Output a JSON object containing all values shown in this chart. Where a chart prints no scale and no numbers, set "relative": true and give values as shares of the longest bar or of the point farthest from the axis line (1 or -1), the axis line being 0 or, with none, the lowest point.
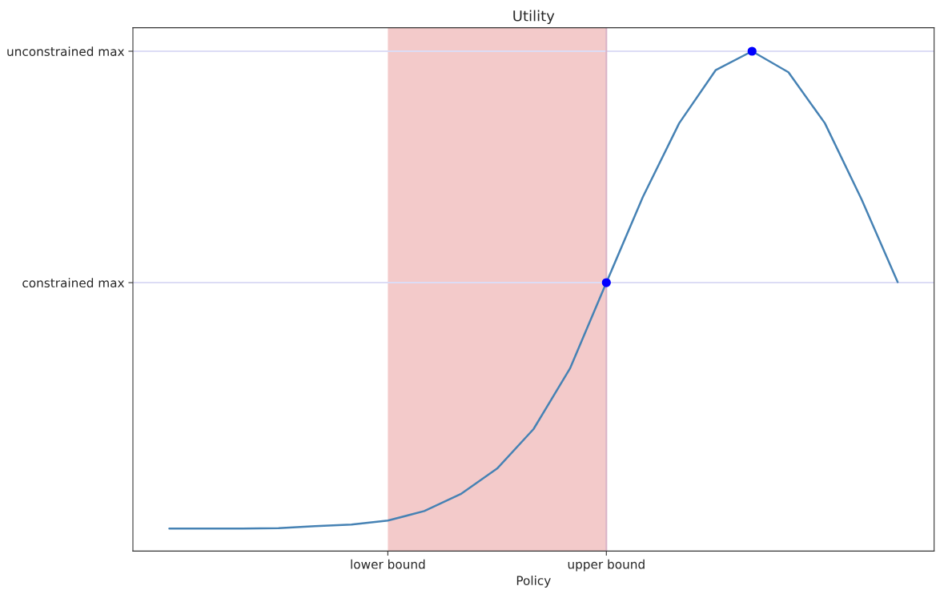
{
  "chart_data": {
    "type": "line",
    "title": "Utility",
    "xlabel": "Policy",
    "relative": true,
    "grid": false,
    "categories": [
      null,
      null,
      null,
      null,
      null,
      null,
      "lower bound",
      null,
      null,
      null,
      null,
      null,
      "upper bound",
      null,
      null,
      null,
      null,
      null,
      null,
      null,
      null
    ],
    "series": [
      {
        "color": "#4682b4",
        "values": [
          0.045,
          0.045,
          0.045,
          0.046,
          0.05,
          0.053,
          0.061,
          0.08,
          0.114,
          0.165,
          0.244,
          0.365,
          0.537,
          0.708,
          0.856,
          0.962,
          1.0,
          0.958,
          0.856,
          0.705,
          0.538
        ]
      },
      {
        "type": "scatter",
        "color": "#0000ff",
        "marker": "circle",
        "values": [
          null,
          null,
          null,
          null,
          null,
          null,
          null,
          null,
          null,
          null,
          null,
          null,
          0.537,
          null,
          null,
          null,
          1.0,
          null,
          null,
          null,
          null
        ]
      }
    ],
    "bands": [
      {
        "axis": "x",
        "from": "lower bound",
        "to": "upper bound",
        "color": "#f3caca"
      }
    ],
    "ref_lines": [
      {
        "axis": "y",
        "value": 0.537,
        "label": "constrained max",
        "color": "#dcdcf5"
      },
      {
        "axis": "y",
        "value": 1.0,
        "label": "unconstrained max",
        "color": "#dcdcf5"
      },
      {
        "axis": "x",
        "value": "upper bound",
        "color": "#d8b4c8"
      }
    ]
  }
}
